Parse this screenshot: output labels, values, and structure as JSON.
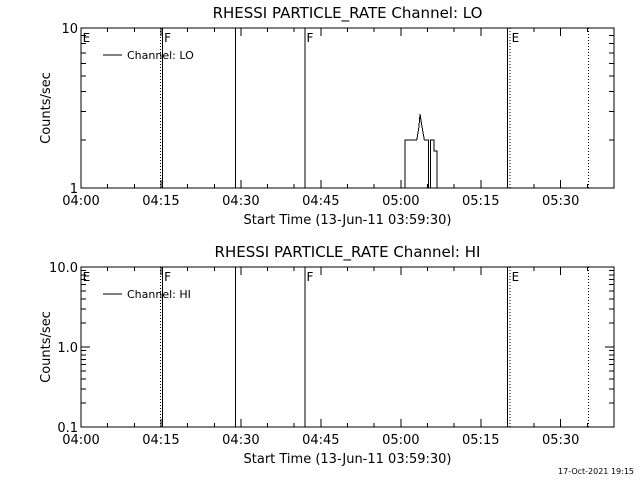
{
  "footer_timestamp": "17-Oct-2021 19:15",
  "chart_data": [
    {
      "type": "line",
      "title": "RHESSI PARTICLE_RATE Channel: LO",
      "xlabel": "Start Time (13-Jun-11 03:59:30)",
      "ylabel": "Counts/sec",
      "y_scale": "log",
      "ylim": [
        1,
        10
      ],
      "y_ticks": [
        {
          "value": 1,
          "label": "1"
        },
        {
          "value": 10,
          "label": "10"
        }
      ],
      "xlim_minutes": [
        0,
        100
      ],
      "x_ticks": [
        {
          "value": 0,
          "label": "04:00"
        },
        {
          "value": 15,
          "label": "04:15"
        },
        {
          "value": 30,
          "label": "04:30"
        },
        {
          "value": 45,
          "label": "04:45"
        },
        {
          "value": 60,
          "label": "05:00"
        },
        {
          "value": 75,
          "label": "05:15"
        },
        {
          "value": 90,
          "label": "05:30"
        }
      ],
      "vlines": [
        {
          "minute": 14.9,
          "style": "dotted"
        },
        {
          "minute": 15.3,
          "style": "solid"
        },
        {
          "minute": 29.0,
          "style": "solid"
        },
        {
          "minute": 42.0,
          "style": "solid"
        },
        {
          "minute": 80.0,
          "style": "solid"
        },
        {
          "minute": 80.5,
          "style": "dotted"
        },
        {
          "minute": 95.2,
          "style": "dotted"
        }
      ],
      "flags": [
        {
          "minute": 0.3,
          "label": "E"
        },
        {
          "minute": 15.6,
          "label": "F"
        },
        {
          "minute": 42.3,
          "label": "F"
        },
        {
          "minute": 80.8,
          "label": "E"
        }
      ],
      "legend": {
        "label": "Channel: LO",
        "position": "top-left"
      },
      "series": [
        {
          "name": "Channel: LO",
          "x": [
            60.8,
            60.8,
            63.0,
            63.4,
            63.6,
            64.0,
            64.4,
            64.8,
            65.2,
            65.2,
            65.6,
            65.6,
            66.2,
            66.2,
            66.8,
            66.8
          ],
          "y": [
            1,
            2.0,
            2.0,
            2.4,
            2.9,
            2.4,
            2.0,
            2.0,
            2.0,
            1.0,
            1.0,
            2.0,
            2.0,
            1.7,
            1.7,
            1.0
          ]
        }
      ]
    },
    {
      "type": "line",
      "title": "RHESSI PARTICLE_RATE Channel: HI",
      "xlabel": "Start Time (13-Jun-11 03:59:30)",
      "ylabel": "Counts/sec",
      "y_scale": "log",
      "ylim": [
        0.1,
        10
      ],
      "y_ticks": [
        {
          "value": 0.1,
          "label": "0.1"
        },
        {
          "value": 1,
          "label": "1.0"
        },
        {
          "value": 10,
          "label": "10.0"
        }
      ],
      "xlim_minutes": [
        0,
        100
      ],
      "x_ticks": [
        {
          "value": 0,
          "label": "04:00"
        },
        {
          "value": 15,
          "label": "04:15"
        },
        {
          "value": 30,
          "label": "04:30"
        },
        {
          "value": 45,
          "label": "04:45"
        },
        {
          "value": 60,
          "label": "05:00"
        },
        {
          "value": 75,
          "label": "05:15"
        },
        {
          "value": 90,
          "label": "05:30"
        }
      ],
      "vlines": [
        {
          "minute": 14.9,
          "style": "dotted"
        },
        {
          "minute": 15.3,
          "style": "solid"
        },
        {
          "minute": 29.0,
          "style": "solid"
        },
        {
          "minute": 42.0,
          "style": "solid"
        },
        {
          "minute": 80.0,
          "style": "solid"
        },
        {
          "minute": 80.5,
          "style": "dotted"
        },
        {
          "minute": 95.2,
          "style": "dotted"
        }
      ],
      "flags": [
        {
          "minute": 0.3,
          "label": "E"
        },
        {
          "minute": 15.6,
          "label": "F"
        },
        {
          "minute": 42.3,
          "label": "F"
        },
        {
          "minute": 80.8,
          "label": "E"
        }
      ],
      "legend": {
        "label": "Channel: HI",
        "position": "top-left"
      },
      "series": [
        {
          "name": "Channel: HI",
          "x": [],
          "y": []
        }
      ]
    }
  ]
}
